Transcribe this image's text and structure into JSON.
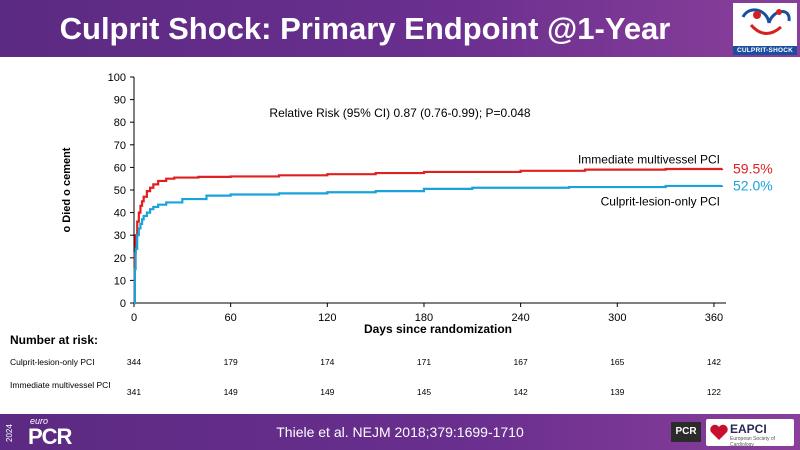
{
  "header": {
    "title": "Culprit Shock: Primary Endpoint @1-Year",
    "logo_text": "CULPRIT-SHOCK"
  },
  "footer": {
    "citation": "Thiele et al. NEJM 2018;379:1699-1710",
    "pcr_year": "2024",
    "pcr_euro": "euro",
    "pcr_main": "PCR",
    "pcr_small": "PCR",
    "eapci_label": "EAPCI",
    "eapci_sub": "European Society of Cardiology"
  },
  "chart_data": {
    "type": "line",
    "ylabel": "o Died o cement",
    "xlabel": "Days since randomization",
    "annotation": "Relative Risk (95% CI) 0.87 (0.76-0.99); P=0.048",
    "xlim": [
      0,
      365
    ],
    "ylim": [
      0,
      100
    ],
    "x_ticks": [
      "0",
      "60",
      "120",
      "180",
      "240",
      "300",
      "360"
    ],
    "y_ticks": [
      "0",
      "10",
      "20",
      "30",
      "40",
      "50",
      "60",
      "70",
      "80",
      "90",
      "100"
    ],
    "series": [
      {
        "name": "Immediate multivessel PCI",
        "color": "#e02020",
        "end_label": "59.5%",
        "points": [
          [
            0,
            0
          ],
          [
            0.5,
            22
          ],
          [
            1,
            30
          ],
          [
            2,
            36
          ],
          [
            3,
            40
          ],
          [
            4,
            43
          ],
          [
            5,
            45
          ],
          [
            6,
            47
          ],
          [
            8,
            49.5
          ],
          [
            10,
            51
          ],
          [
            12,
            52.5
          ],
          [
            15,
            54
          ],
          [
            20,
            55
          ],
          [
            25,
            55.5
          ],
          [
            40,
            55.8
          ],
          [
            60,
            56
          ],
          [
            90,
            56.5
          ],
          [
            120,
            57
          ],
          [
            150,
            57.5
          ],
          [
            180,
            58
          ],
          [
            240,
            58.5
          ],
          [
            280,
            59
          ],
          [
            330,
            59.3
          ],
          [
            365,
            59.5
          ]
        ]
      },
      {
        "name": "Culprit-lesion-only PCI",
        "color": "#1aa3db",
        "end_label": "52.0%",
        "points": [
          [
            0,
            0
          ],
          [
            0.5,
            15
          ],
          [
            1,
            24
          ],
          [
            2,
            30
          ],
          [
            3,
            33
          ],
          [
            4,
            35
          ],
          [
            5,
            37
          ],
          [
            6,
            38.5
          ],
          [
            8,
            40
          ],
          [
            10,
            41.5
          ],
          [
            12,
            42.5
          ],
          [
            15,
            43.5
          ],
          [
            20,
            44.5
          ],
          [
            30,
            46
          ],
          [
            45,
            47.5
          ],
          [
            60,
            48
          ],
          [
            90,
            48.5
          ],
          [
            120,
            49
          ],
          [
            150,
            49.5
          ],
          [
            180,
            50.5
          ],
          [
            210,
            51
          ],
          [
            270,
            51.3
          ],
          [
            330,
            51.8
          ],
          [
            365,
            52.0
          ]
        ]
      }
    ]
  },
  "risk_table": {
    "title": "Number at risk:",
    "rows": [
      {
        "label": "Culprit-lesion-only PCI",
        "values": [
          "344",
          "179",
          "174",
          "171",
          "167",
          "165",
          "142"
        ]
      },
      {
        "label": "Immediate multivessel PCI",
        "values": [
          "341",
          "149",
          "149",
          "145",
          "142",
          "139",
          "122"
        ]
      }
    ]
  }
}
